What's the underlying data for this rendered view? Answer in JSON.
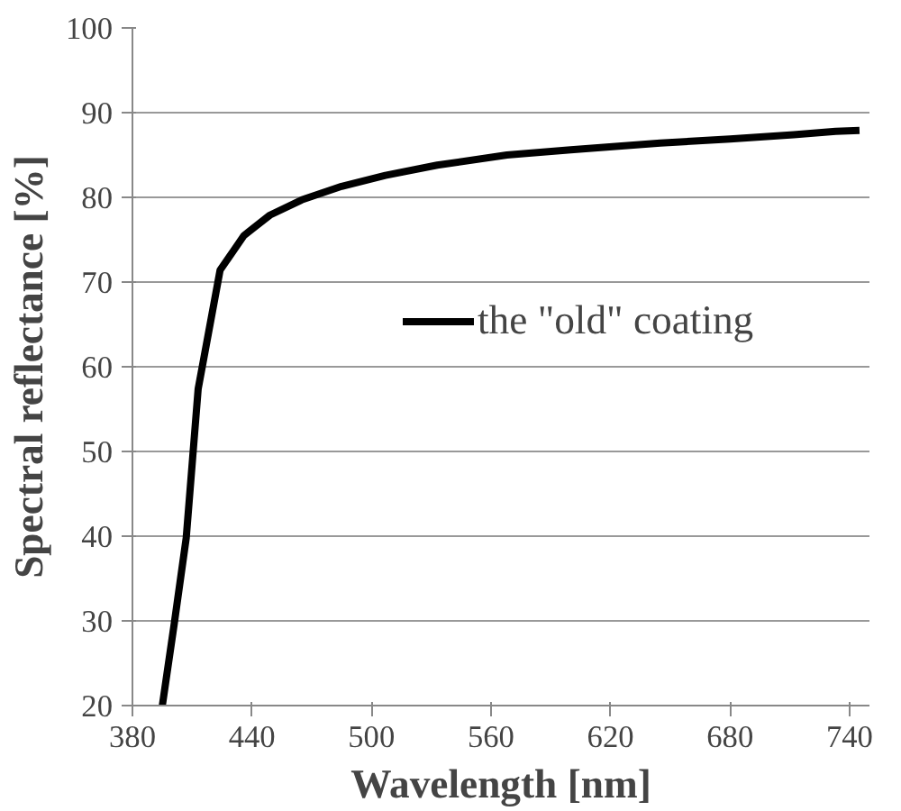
{
  "chart_data": {
    "type": "line",
    "xlabel": "Wavelength [nm]",
    "ylabel": "Spectral reflectance [%]",
    "x": [
      395,
      401,
      407,
      413,
      424,
      436,
      449,
      465,
      485,
      507,
      533,
      568,
      600,
      645,
      680,
      712,
      733,
      745
    ],
    "series": [
      {
        "name": "the \"old\" coating",
        "color": "#000000",
        "values": [
          20,
          29.7,
          39.8,
          57.4,
          71.4,
          75.5,
          77.9,
          79.7,
          81.3,
          82.6,
          83.8,
          85.0,
          85.6,
          86.4,
          86.9,
          87.4,
          87.8,
          87.9
        ]
      }
    ],
    "xlim": [
      380,
      750
    ],
    "xticks": [
      380,
      440,
      500,
      560,
      620,
      680,
      740
    ],
    "ylim": [
      20,
      100
    ],
    "yticks": [
      20,
      30,
      40,
      50,
      60,
      70,
      80,
      90,
      100
    ],
    "grid": "y",
    "legend": "right",
    "marker": "none",
    "line_style": "solid"
  }
}
